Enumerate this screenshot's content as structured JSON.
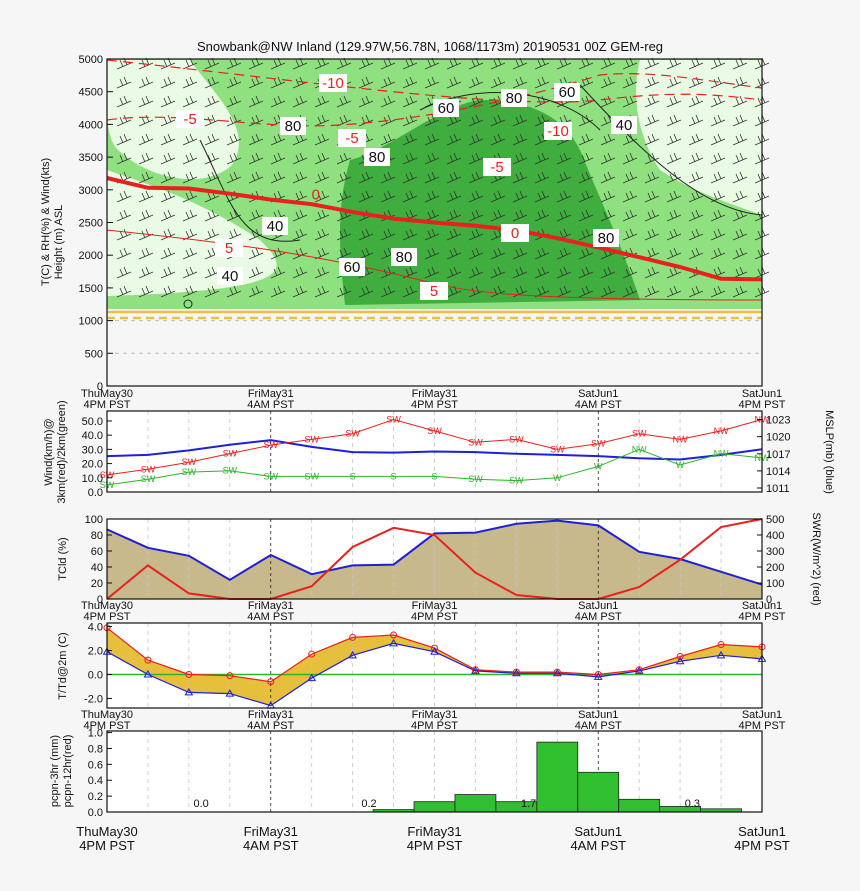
{
  "title": "Snowbank@NW Inland (129.97W,56.78N, 1068/1173m)  20190531  00Z  GEM-reg",
  "colors": {
    "frame": "#111111",
    "red": "#e8201e",
    "blue": "#1f1fd6",
    "green": "#2cb52c",
    "bar": "#2fbf2f",
    "fill_tan": "#c8b98d",
    "fill_gold": "#e6bf3c",
    "bg_light": "#e9fbe5",
    "bg_mid": "#8fe07f",
    "bg_dark": "#3fae3f",
    "sfc_line": "#e8c23c"
  },
  "time_axis": {
    "ticks": [
      [
        "ThuMay30",
        "4PM PST"
      ],
      [
        "FriMay31",
        "4AM PST"
      ],
      [
        "FriMay31",
        "4PM PST"
      ],
      [
        "SatJun1",
        "4AM PST"
      ],
      [
        "SatJun1",
        "4PM PST"
      ]
    ]
  },
  "chart_data": [
    {
      "id": "cross_section",
      "type": "heatmap",
      "ylabel_lines": [
        "T(C) & RH(%) & Wind(kts)",
        "Height (m) ASL"
      ],
      "ylim": [
        0,
        5000
      ],
      "yticks": [
        "0",
        "500",
        "1000",
        "1500",
        "2000",
        "2500",
        "3000",
        "3500",
        "4000",
        "4500",
        "5000"
      ],
      "freezing_level": {
        "label": "0",
        "x": [
          0,
          1,
          2,
          3,
          4,
          5,
          6,
          7,
          8,
          9,
          10,
          11,
          12,
          13,
          14,
          15,
          16
        ],
        "height": [
          3180,
          3030,
          3020,
          2940,
          2850,
          2780,
          2660,
          2560,
          2500,
          2450,
          2380,
          2260,
          2120,
          1970,
          1820,
          1640,
          1630
        ]
      },
      "temp_labels": [
        "-10",
        "-5",
        "-5",
        "-5",
        "-10",
        "5",
        "5",
        "0",
        "0"
      ],
      "rh_labels": [
        "80",
        "80",
        "60",
        "80",
        "60",
        "40",
        "40",
        "40",
        "80",
        "60",
        "80"
      ]
    },
    {
      "id": "wind_mslp",
      "type": "line",
      "ylabel_lines": [
        "Wind(km/h)@",
        "3km(red)/2km(green)"
      ],
      "y2label": "MSLP(mb) (blue)",
      "ylim": [
        0,
        57
      ],
      "yticks": [
        "0.0",
        "10.0",
        "20.0",
        "30.0",
        "40.0",
        "50.0"
      ],
      "y2ticks": [
        "1011",
        "1014",
        "1017",
        "1020",
        "1023"
      ],
      "x": [
        0,
        1,
        2,
        3,
        4,
        5,
        6,
        7,
        8,
        9,
        10,
        11,
        12,
        13,
        14,
        15,
        16
      ],
      "series": [
        {
          "values": [
            12,
            16,
            21,
            27,
            33,
            37,
            41,
            51,
            43,
            35,
            37,
            30,
            34,
            41,
            37,
            43,
            51
          ],
          "dirs": [
            "SW",
            "SW",
            "SW",
            "SW",
            "SW",
            "SW",
            "SW",
            "SW",
            "SW",
            "SW",
            "SW",
            "SW",
            "SW",
            "SW",
            "NW",
            "NW",
            "NW"
          ]
        },
        {
          "values": [
            5,
            9,
            14,
            15,
            11,
            11,
            11,
            11,
            11,
            9,
            8,
            10,
            18,
            30,
            19,
            27,
            24
          ],
          "dirs": [
            "SW",
            "SW",
            "SW",
            "SW",
            "SW",
            "SW",
            "S",
            "S",
            "S",
            "SW",
            "SW",
            "W",
            "W",
            "NW",
            "W",
            "NW",
            "NW"
          ]
        },
        {
          "values": [
            1016.6,
            1016.8,
            1017.6,
            1018.6,
            1019.4,
            1018.2,
            1017.3,
            1017.2,
            1017.4,
            1017.3,
            1017.0,
            1016.8,
            1016.6,
            1016.2,
            1016.0,
            1016.8,
            1017.8
          ]
        }
      ]
    },
    {
      "id": "cloud_swr",
      "type": "area",
      "ylabel": "TCld (%)",
      "y2label": "SWR(W/m^2) (red)",
      "ylim": [
        0,
        100
      ],
      "y2lim": [
        0,
        500
      ],
      "yticks": [
        "0",
        "20",
        "40",
        "60",
        "80",
        "100"
      ],
      "y2ticks": [
        "0",
        "100",
        "200",
        "300",
        "400",
        "500"
      ],
      "x": [
        0,
        1,
        2,
        3,
        4,
        5,
        6,
        7,
        8,
        9,
        10,
        11,
        12,
        13,
        14,
        15,
        16
      ],
      "series": [
        {
          "values": [
            87,
            64,
            54,
            24,
            55,
            31,
            42,
            43,
            82,
            83,
            94,
            98,
            92,
            59,
            50,
            34,
            18
          ]
        },
        {
          "values": [
            0,
            210,
            35,
            0,
            0,
            80,
            325,
            445,
            400,
            165,
            25,
            0,
            0,
            75,
            245,
            450,
            500
          ]
        }
      ]
    },
    {
      "id": "temp_dew",
      "type": "line",
      "ylabel": "T/Td@2m (C)",
      "ylim": [
        -2.8,
        4.3
      ],
      "yticks": [
        "-2.0",
        "0.0",
        "2.0",
        "4.0"
      ],
      "x": [
        0,
        1,
        2,
        3,
        4,
        5,
        6,
        7,
        8,
        9,
        10,
        11,
        12,
        13,
        14,
        15,
        16
      ],
      "series": [
        {
          "values": [
            3.9,
            1.2,
            0.0,
            -0.1,
            -0.6,
            1.7,
            3.1,
            3.3,
            2.2,
            0.4,
            0.2,
            0.2,
            0.0,
            0.4,
            1.5,
            2.5,
            2.3
          ]
        },
        {
          "values": [
            1.9,
            0.0,
            -1.5,
            -1.6,
            -2.6,
            -0.3,
            1.6,
            2.6,
            1.9,
            0.3,
            0.1,
            0.1,
            -0.2,
            0.3,
            1.1,
            1.6,
            1.3
          ]
        }
      ],
      "zero_line": 0
    },
    {
      "id": "precip",
      "type": "bar",
      "ylabel_lines": [
        "pcpn-3hr (mm)",
        "pcpn-12hr(red)"
      ],
      "ylim": [
        0,
        1.02
      ],
      "yticks": [
        "0.0",
        "0.2",
        "0.4",
        "0.6",
        "0.8",
        "1.0"
      ],
      "bars_3hr": [
        0,
        0,
        0,
        0,
        0,
        0,
        0,
        0.03,
        0.13,
        0.22,
        0.13,
        0.88,
        0.5,
        0.16,
        0.07,
        0.04,
        0
      ],
      "totals_12hr": [
        {
          "x": 2.3,
          "label": "0.0"
        },
        {
          "x": 6.4,
          "label": "0.2"
        },
        {
          "x": 10.3,
          "label": "1.7"
        },
        {
          "x": 14.3,
          "label": "0.3"
        }
      ]
    }
  ]
}
